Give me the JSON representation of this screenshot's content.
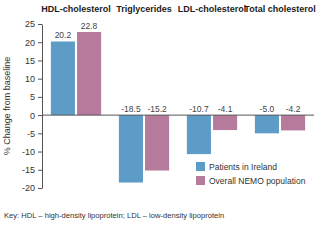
{
  "chart_data": {
    "type": "bar",
    "categories": [
      "HDL-cholesterol",
      "Triglycerides",
      "LDL-cholesterol",
      "Total cholesterol"
    ],
    "series": [
      {
        "name": "Patients in Ireland",
        "color": "#5d9cc7",
        "values": [
          20.2,
          -18.5,
          -10.7,
          -5.0
        ],
        "value_labels": [
          "20.2",
          "-18.5",
          "-10.7",
          "-5.0"
        ]
      },
      {
        "name": "Overall NEMO population",
        "color": "#b57a9c",
        "values": [
          22.8,
          -15.2,
          -4.1,
          -4.2
        ],
        "value_labels": [
          "22.8",
          "-15.2",
          "-4.1",
          "-4.2"
        ]
      }
    ],
    "y_label": "% Change from baseline",
    "ylim": [
      -20,
      25
    ],
    "yticks": [
      -20,
      -15,
      -10,
      -5,
      0,
      5,
      10,
      15,
      20,
      25
    ],
    "data_labels": true,
    "legend": "lower right",
    "annotations": [
      "Key: HDL – high-density lipoprotein; LDL – low-density lipoprotein"
    ]
  }
}
